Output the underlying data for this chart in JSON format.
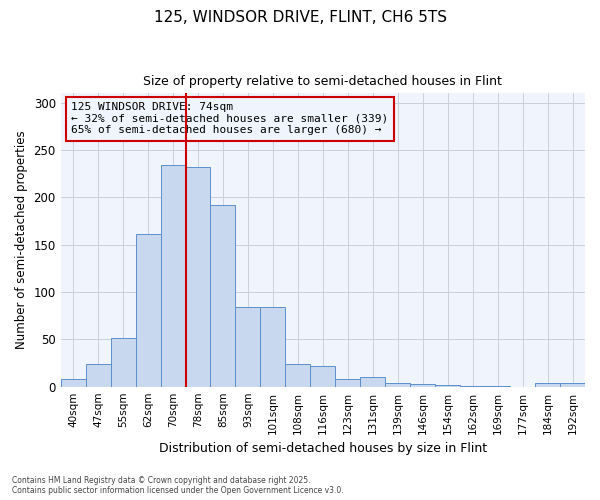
{
  "title": "125, WINDSOR DRIVE, FLINT, CH6 5TS",
  "subtitle": "Size of property relative to semi-detached houses in Flint",
  "xlabel": "Distribution of semi-detached houses by size in Flint",
  "ylabel": "Number of semi-detached properties",
  "categories": [
    "40sqm",
    "47sqm",
    "55sqm",
    "62sqm",
    "70sqm",
    "78sqm",
    "85sqm",
    "93sqm",
    "101sqm",
    "108sqm",
    "116sqm",
    "123sqm",
    "131sqm",
    "139sqm",
    "146sqm",
    "154sqm",
    "162sqm",
    "169sqm",
    "177sqm",
    "184sqm",
    "192sqm"
  ],
  "values": [
    8,
    24,
    51,
    161,
    234,
    232,
    192,
    84,
    84,
    24,
    22,
    8,
    10,
    4,
    3,
    2,
    1,
    1,
    0,
    4,
    4
  ],
  "bar_color": "#c8d8ee",
  "bar_edge_color": "#5b8fcc",
  "grid_color": "#c8d0dc",
  "bg_color": "#ffffff",
  "plot_bg_color": "#f0f4fc",
  "vline_x_index": 5,
  "vline_color": "#cc0000",
  "annotation_title": "125 WINDSOR DRIVE: 74sqm",
  "annotation_line1": "← 32% of semi-detached houses are smaller (339)",
  "annotation_line2": "65% of semi-detached houses are larger (680) →",
  "annotation_box_color": "#cc0000",
  "ylim": [
    0,
    310
  ],
  "yticks": [
    0,
    50,
    100,
    150,
    200,
    250,
    300
  ],
  "footer_line1": "Contains HM Land Registry data © Crown copyright and database right 2025.",
  "footer_line2": "Contains public sector information licensed under the Open Government Licence v3.0."
}
